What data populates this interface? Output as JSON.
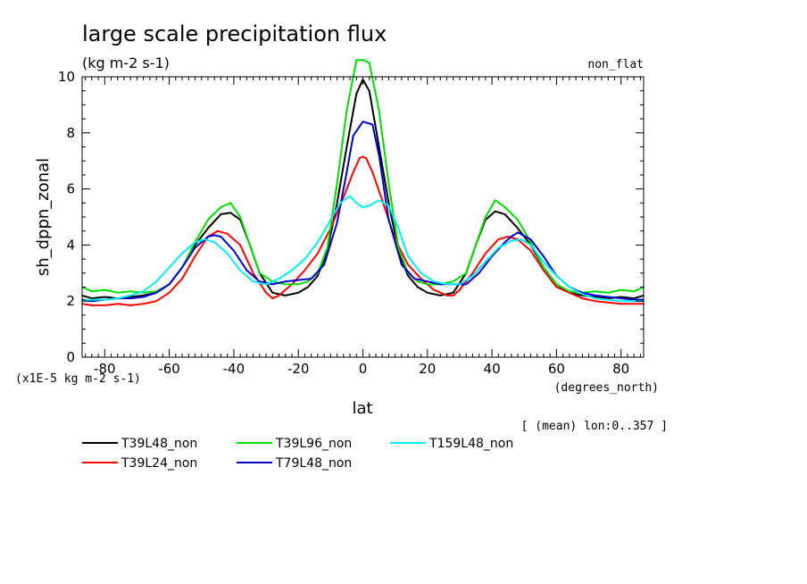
{
  "chart_data": {
    "type": "line",
    "title": "large scale precipitation flux",
    "units": "(kg m-2 s-1)",
    "top_right_label": "non_flat",
    "xlabel": "lat",
    "xunits": "(degrees_north)",
    "ylabel": "sh_dppn_zonal",
    "yscale_note": "(x1E-5 kg m-2 s-1)",
    "footnote": "[ (mean) lon:0..357 ]",
    "xlim": [
      -87,
      87
    ],
    "ylim": [
      0,
      10
    ],
    "xticks": [
      -80,
      -60,
      -40,
      -20,
      0,
      20,
      40,
      60,
      80
    ],
    "yticks": [
      0,
      2,
      4,
      6,
      8,
      10
    ],
    "tick_labels_x": [
      "-80",
      "-60",
      "-40",
      "-20",
      "0",
      "20",
      "40",
      "60",
      "80"
    ],
    "tick_labels_y": [
      "0",
      "2",
      "4",
      "6",
      "8",
      "10"
    ],
    "grid": false,
    "legend_position": "bottom",
    "series": [
      {
        "name": "T39L48_non",
        "color": "#000000",
        "x": [
          -87,
          -84,
          -80,
          -76,
          -72,
          -68,
          -64,
          -60,
          -56,
          -52,
          -48,
          -44,
          -41,
          -38,
          -35,
          -32,
          -28,
          -24,
          -20,
          -17,
          -14,
          -11,
          -8,
          -5,
          -2,
          0,
          2,
          5,
          8,
          11,
          14,
          17,
          20,
          24,
          28,
          32,
          35,
          38,
          41,
          44,
          48,
          52,
          56,
          60,
          64,
          68,
          72,
          76,
          80,
          84,
          87
        ],
        "y": [
          2.2,
          2.1,
          2.15,
          2.1,
          2.15,
          2.2,
          2.3,
          2.6,
          3.2,
          4.0,
          4.6,
          5.1,
          5.15,
          4.9,
          4.0,
          3.0,
          2.3,
          2.2,
          2.3,
          2.5,
          2.9,
          3.8,
          5.5,
          7.5,
          9.4,
          9.9,
          9.5,
          7.5,
          5.5,
          3.8,
          2.9,
          2.5,
          2.3,
          2.2,
          2.3,
          3.0,
          4.0,
          4.9,
          5.2,
          5.1,
          4.6,
          4.0,
          3.2,
          2.6,
          2.3,
          2.2,
          2.15,
          2.1,
          2.15,
          2.1,
          2.2
        ]
      },
      {
        "name": "T39L24_non",
        "color": "#ff0000",
        "x": [
          -87,
          -84,
          -80,
          -76,
          -72,
          -68,
          -64,
          -60,
          -56,
          -52,
          -48,
          -45,
          -42,
          -38,
          -34,
          -30,
          -28,
          -26,
          -22,
          -18,
          -14,
          -10,
          -6,
          -3,
          -1,
          0,
          1,
          3,
          6,
          10,
          14,
          18,
          22,
          26,
          28,
          30,
          34,
          38,
          42,
          45,
          48,
          52,
          56,
          60,
          64,
          68,
          72,
          76,
          80,
          84,
          87
        ],
        "y": [
          1.9,
          1.85,
          1.85,
          1.9,
          1.85,
          1.9,
          2.0,
          2.3,
          2.8,
          3.6,
          4.3,
          4.5,
          4.4,
          4.0,
          3.0,
          2.3,
          2.1,
          2.2,
          2.6,
          3.1,
          3.7,
          4.6,
          5.7,
          6.6,
          7.1,
          7.15,
          7.1,
          6.6,
          5.6,
          4.2,
          3.3,
          2.8,
          2.4,
          2.2,
          2.2,
          2.4,
          3.0,
          3.7,
          4.2,
          4.3,
          4.2,
          3.8,
          3.1,
          2.5,
          2.3,
          2.1,
          2.0,
          1.95,
          1.9,
          1.9,
          1.9
        ]
      },
      {
        "name": "T39L96_non",
        "color": "#00dd00",
        "x": [
          -87,
          -84,
          -80,
          -76,
          -72,
          -68,
          -64,
          -60,
          -56,
          -52,
          -48,
          -44,
          -41,
          -38,
          -35,
          -32,
          -28,
          -24,
          -20,
          -17,
          -14,
          -11,
          -8,
          -5,
          -2,
          0,
          2,
          5,
          8,
          11,
          14,
          17,
          20,
          24,
          28,
          32,
          35,
          38,
          41,
          44,
          48,
          52,
          56,
          60,
          64,
          68,
          72,
          76,
          80,
          84,
          87
        ],
        "y": [
          2.5,
          2.35,
          2.4,
          2.3,
          2.35,
          2.3,
          2.35,
          2.6,
          3.2,
          4.1,
          4.9,
          5.35,
          5.5,
          5.0,
          4.0,
          3.0,
          2.7,
          2.6,
          2.6,
          2.7,
          3.0,
          3.9,
          6.2,
          8.8,
          10.6,
          10.6,
          10.5,
          8.8,
          6.2,
          3.9,
          3.0,
          2.7,
          2.6,
          2.6,
          2.7,
          3.0,
          4.0,
          5.0,
          5.6,
          5.35,
          4.9,
          4.1,
          3.2,
          2.6,
          2.35,
          2.3,
          2.35,
          2.3,
          2.4,
          2.35,
          2.5
        ]
      },
      {
        "name": "T79L48_non",
        "color": "#0000cc",
        "x": [
          -87,
          -84,
          -80,
          -76,
          -72,
          -68,
          -64,
          -60,
          -56,
          -52,
          -48,
          -46,
          -44,
          -40,
          -36,
          -32,
          -28,
          -24,
          -20,
          -16,
          -12,
          -8,
          -5,
          -3,
          0,
          3,
          5,
          8,
          12,
          16,
          20,
          24,
          28,
          32,
          36,
          40,
          44,
          46,
          48,
          52,
          56,
          60,
          64,
          68,
          72,
          76,
          80,
          84,
          87
        ],
        "y": [
          2.05,
          2.0,
          2.05,
          2.1,
          2.1,
          2.15,
          2.3,
          2.6,
          3.2,
          3.9,
          4.3,
          4.35,
          4.3,
          3.8,
          3.1,
          2.7,
          2.6,
          2.7,
          2.75,
          2.8,
          3.3,
          4.8,
          6.6,
          7.9,
          8.4,
          8.3,
          7.2,
          4.9,
          3.3,
          2.8,
          2.7,
          2.6,
          2.6,
          2.6,
          3.0,
          3.6,
          4.1,
          4.3,
          4.45,
          4.2,
          3.6,
          2.9,
          2.5,
          2.3,
          2.2,
          2.15,
          2.1,
          2.05,
          2.05
        ]
      },
      {
        "name": "T159L48_non",
        "color": "#00eeee",
        "x": [
          -87,
          -84,
          -80,
          -76,
          -72,
          -68,
          -64,
          -60,
          -56,
          -52,
          -49,
          -46,
          -42,
          -38,
          -34,
          -30,
          -26,
          -22,
          -18,
          -14,
          -10,
          -7,
          -4,
          -2,
          0,
          2,
          5,
          8,
          11,
          14,
          18,
          22,
          26,
          30,
          34,
          38,
          42,
          46,
          49,
          52,
          56,
          60,
          64,
          68,
          72,
          76,
          80,
          84,
          87
        ],
        "y": [
          2.0,
          2.05,
          2.05,
          2.1,
          2.2,
          2.35,
          2.7,
          3.2,
          3.7,
          4.1,
          4.2,
          4.1,
          3.7,
          3.1,
          2.7,
          2.6,
          2.8,
          3.1,
          3.5,
          4.1,
          4.9,
          5.5,
          5.75,
          5.5,
          5.35,
          5.4,
          5.6,
          5.4,
          4.6,
          3.6,
          3.0,
          2.7,
          2.6,
          2.6,
          2.9,
          3.4,
          3.9,
          4.15,
          4.2,
          4.0,
          3.4,
          2.9,
          2.5,
          2.25,
          2.1,
          2.05,
          2.0,
          2.0,
          2.0
        ]
      }
    ]
  }
}
